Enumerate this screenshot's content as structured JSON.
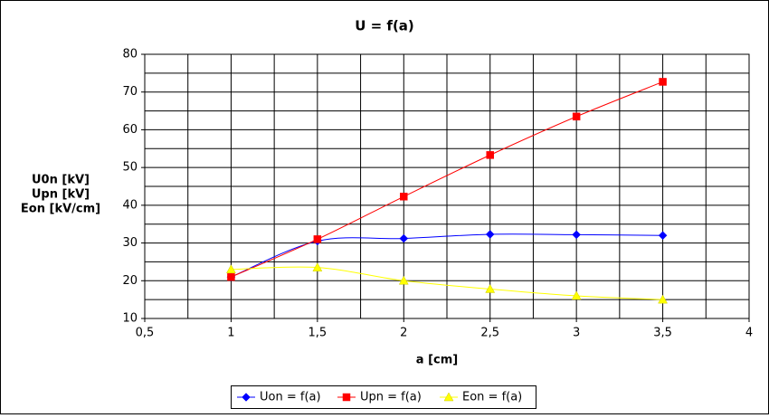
{
  "chart_data": {
    "type": "line",
    "title": "U = f(a)",
    "xlabel": "a [cm]",
    "ylabel": [
      "U0n [kV]",
      "Upn [kV]",
      "Eon [kV/cm]"
    ],
    "x": [
      1,
      1.5,
      2,
      2.5,
      3,
      3.5
    ],
    "series": [
      {
        "name": "Uon = f(a)",
        "color": "#0000ff",
        "marker": "diamond",
        "values": [
          21,
          30.5,
          31.2,
          32.3,
          32.2,
          32
        ]
      },
      {
        "name": "Upn = f(a)",
        "color": "#ff0000",
        "marker": "square",
        "values": [
          21,
          31,
          42.3,
          53.3,
          63.5,
          72.7
        ]
      },
      {
        "name": "Eon = f(a)",
        "color": "#ffff00",
        "marker": "triangle",
        "values": [
          23,
          23.5,
          20,
          17.8,
          16,
          15
        ]
      }
    ],
    "xlim": [
      0.5,
      4
    ],
    "xticks": [
      {
        "value": 0.5,
        "label": "0,5"
      },
      1,
      {
        "value": 1.5,
        "label": "1,5"
      },
      2,
      {
        "value": 2.5,
        "label": "2,5"
      },
      3,
      {
        "value": 3.5,
        "label": "3,5"
      },
      4
    ],
    "ylim": [
      10,
      80
    ],
    "yticks": [
      10,
      20,
      30,
      40,
      50,
      60,
      70,
      80
    ],
    "grid": true,
    "smooth": true,
    "legend": "bottom"
  }
}
